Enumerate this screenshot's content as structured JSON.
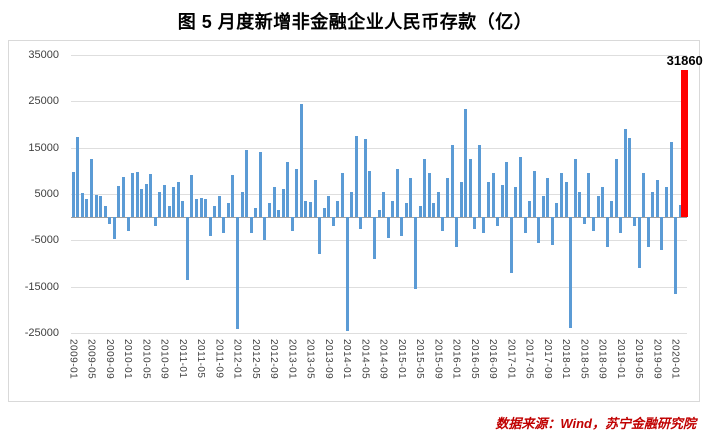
{
  "title": "图 5 月度新增非金融企业人民币存款（亿）",
  "source_note": "数据来源：Wind，苏宁金融研究院",
  "colors": {
    "bar": "#5B9BD5",
    "highlight": "#FF0000",
    "gridline": "#DEDEDE",
    "zero_axis": "#9E9E9E",
    "source_text": "#C00000"
  },
  "chart_data": {
    "type": "bar",
    "title": "图 5 月度新增非金融企业人民币存款（亿）",
    "ylabel": "",
    "xlabel": "",
    "ylim": [
      -25000,
      35000
    ],
    "y_ticks": [
      35000,
      25000,
      15000,
      5000,
      -5000,
      -15000,
      -25000
    ],
    "grid": "horizontal",
    "legend": "none",
    "highlight_index": 134,
    "highlight_label": "31860",
    "x_tick_every": 4,
    "x_tick_labels": [
      "2009-01",
      "2009-05",
      "2009-09",
      "2010-01",
      "2010-05",
      "2010-09",
      "2011-01",
      "2011-05",
      "2011-09",
      "2012-01",
      "2012-05",
      "2012-09",
      "2013-01",
      "2013-05",
      "2013-09",
      "2014-01",
      "2014-05",
      "2014-09",
      "2015-01",
      "2015-05",
      "2015-09",
      "2016-01",
      "2016-05",
      "2016-09",
      "2017-01",
      "2017-05",
      "2017-09",
      "2018-01",
      "2018-05",
      "2018-09",
      "2019-01",
      "2019-05",
      "2019-09",
      "2020-01"
    ],
    "x": [
      "2009-01",
      "2009-02",
      "2009-03",
      "2009-04",
      "2009-05",
      "2009-06",
      "2009-07",
      "2009-08",
      "2009-09",
      "2009-10",
      "2009-11",
      "2009-12",
      "2010-01",
      "2010-02",
      "2010-03",
      "2010-04",
      "2010-05",
      "2010-06",
      "2010-07",
      "2010-08",
      "2010-09",
      "2010-10",
      "2010-11",
      "2010-12",
      "2011-01",
      "2011-02",
      "2011-03",
      "2011-04",
      "2011-05",
      "2011-06",
      "2011-07",
      "2011-08",
      "2011-09",
      "2011-10",
      "2011-11",
      "2011-12",
      "2012-01",
      "2012-02",
      "2012-03",
      "2012-04",
      "2012-05",
      "2012-06",
      "2012-07",
      "2012-08",
      "2012-09",
      "2012-10",
      "2012-11",
      "2012-12",
      "2013-01",
      "2013-02",
      "2013-03",
      "2013-04",
      "2013-05",
      "2013-06",
      "2013-07",
      "2013-08",
      "2013-09",
      "2013-10",
      "2013-11",
      "2013-12",
      "2014-01",
      "2014-02",
      "2014-03",
      "2014-04",
      "2014-05",
      "2014-06",
      "2014-07",
      "2014-08",
      "2014-09",
      "2014-10",
      "2014-11",
      "2014-12",
      "2015-01",
      "2015-02",
      "2015-03",
      "2015-04",
      "2015-05",
      "2015-06",
      "2015-07",
      "2015-08",
      "2015-09",
      "2015-10",
      "2015-11",
      "2015-12",
      "2016-01",
      "2016-02",
      "2016-03",
      "2016-04",
      "2016-05",
      "2016-06",
      "2016-07",
      "2016-08",
      "2016-09",
      "2016-10",
      "2016-11",
      "2016-12",
      "2017-01",
      "2017-02",
      "2017-03",
      "2017-04",
      "2017-05",
      "2017-06",
      "2017-07",
      "2017-08",
      "2017-09",
      "2017-10",
      "2017-11",
      "2017-12",
      "2018-01",
      "2018-02",
      "2018-03",
      "2018-04",
      "2018-05",
      "2018-06",
      "2018-07",
      "2018-08",
      "2018-09",
      "2018-10",
      "2018-11",
      "2018-12",
      "2019-01",
      "2019-02",
      "2019-03",
      "2019-04",
      "2019-05",
      "2019-06",
      "2019-07",
      "2019-08",
      "2019-09",
      "2019-10",
      "2019-11",
      "2019-12",
      "2020-01",
      "2020-02",
      "2020-03"
    ],
    "values": [
      9800,
      17300,
      5200,
      4000,
      12600,
      4800,
      4500,
      2500,
      -1500,
      -4800,
      6800,
      8700,
      -3000,
      9500,
      9800,
      6000,
      7200,
      9400,
      -2000,
      5500,
      7000,
      2500,
      6500,
      7500,
      3500,
      -13500,
      9000,
      4000,
      4200,
      4000,
      -4000,
      2500,
      4500,
      -3500,
      3000,
      9000,
      -24200,
      5500,
      14500,
      -3500,
      2000,
      14000,
      -5000,
      3000,
      6500,
      1500,
      6000,
      12000,
      -3000,
      10500,
      24500,
      3500,
      3200,
      8000,
      -8000,
      2000,
      4500,
      -2000,
      3500,
      9500,
      -24500,
      5500,
      17500,
      -2500,
      16800,
      10000,
      -9000,
      1500,
      5500,
      -4500,
      3500,
      10500,
      -4000,
      3000,
      8500,
      -15500,
      2500,
      12500,
      9500,
      3000,
      5500,
      -3000,
      8500,
      15500,
      -6500,
      7500,
      23300,
      12500,
      -2500,
      15500,
      -3500,
      7500,
      9500,
      -2000,
      7000,
      12000,
      -12000,
      6500,
      13000,
      -3500,
      3500,
      10000,
      -5500,
      4500,
      8500,
      -6000,
      3000,
      9500,
      7500,
      -24000,
      12500,
      5500,
      -1500,
      9500,
      -3000,
      4500,
      6500,
      -6500,
      3500,
      12500,
      -3500,
      19000,
      17000,
      -2000,
      -11000,
      9500,
      -6500,
      5500,
      8000,
      -7000,
      6500,
      16300,
      -16500,
      2600,
      31860
    ]
  }
}
